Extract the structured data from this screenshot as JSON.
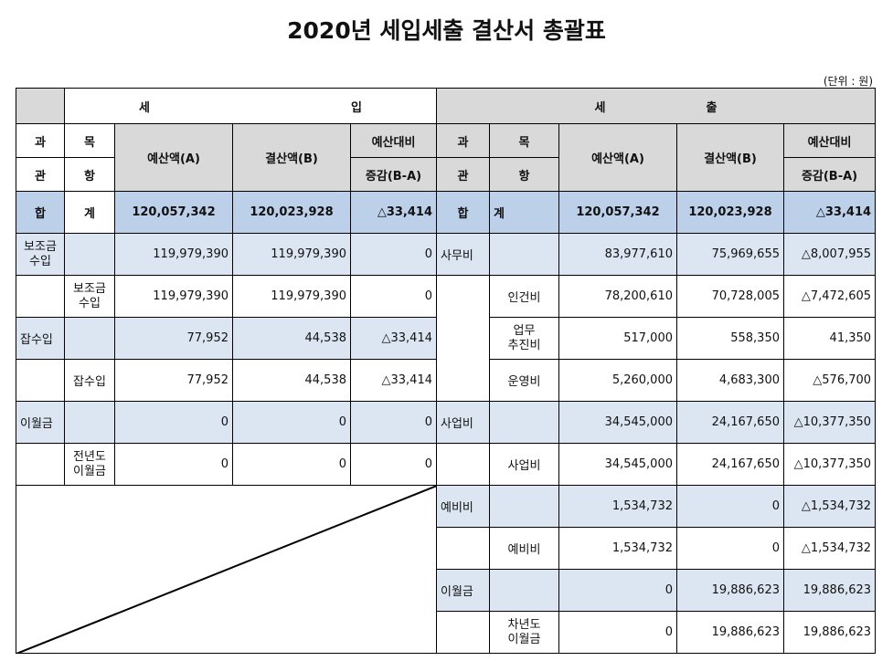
{
  "title": "2020년 세입세출 결산서 총괄표",
  "unit": "(단위 : 원)",
  "revenue": {
    "header_left": "세",
    "header_right": "입",
    "col_gwa": "과",
    "col_mok": "목",
    "col_gwan": "관",
    "col_hang": "항",
    "col_budget": "예산액(A)",
    "col_settle": "결산액(B)",
    "col_diff_top": "예산대비",
    "col_diff_bottom": "증감(B-A)",
    "total": {
      "gwan": "합",
      "hang": "계",
      "budget": "120,057,342",
      "settle": "120,023,928",
      "diff": "△33,414"
    },
    "rows": [
      {
        "gwan": "보조금\n수입",
        "hang": "",
        "budget": "119,979,390",
        "settle": "119,979,390",
        "diff": "0"
      },
      {
        "gwan": "",
        "hang": "보조금\n수입",
        "budget": "119,979,390",
        "settle": "119,979,390",
        "diff": "0"
      },
      {
        "gwan": "잡수입",
        "hang": "",
        "budget": "77,952",
        "settle": "44,538",
        "diff": "△33,414"
      },
      {
        "gwan": "",
        "hang": "잡수입",
        "budget": "77,952",
        "settle": "44,538",
        "diff": "△33,414"
      },
      {
        "gwan": "이월금",
        "hang": "",
        "budget": "0",
        "settle": "0",
        "diff": "0"
      },
      {
        "gwan": "",
        "hang": "전년도\n이월금",
        "budget": "0",
        "settle": "0",
        "diff": "0"
      }
    ]
  },
  "expenditure": {
    "header_left": "세",
    "header_right": "출",
    "col_gwa": "과",
    "col_mok": "목",
    "col_gwan": "관",
    "col_hang": "항",
    "col_budget": "예산액(A)",
    "col_settle": "결산액(B)",
    "col_diff_top": "예산대비",
    "col_diff_bottom": "증감(B-A)",
    "total": {
      "gwan": "합",
      "hang": "계",
      "budget": "120,057,342",
      "settle": "120,023,928",
      "diff": "△33,414"
    },
    "rows": [
      {
        "gwan": "사무비",
        "hang": "",
        "budget": "83,977,610",
        "settle": "75,969,655",
        "diff": "△8,007,955"
      },
      {
        "gwan": "",
        "hang": "인건비",
        "budget": "78,200,610",
        "settle": "70,728,005",
        "diff": "△7,472,605"
      },
      {
        "gwan": "",
        "hang": "업무\n추진비",
        "budget": "517,000",
        "settle": "558,350",
        "diff": "41,350"
      },
      {
        "gwan": "",
        "hang": "운영비",
        "budget": "5,260,000",
        "settle": "4,683,300",
        "diff": "△576,700"
      },
      {
        "gwan": "사업비",
        "hang": "",
        "budget": "34,545,000",
        "settle": "24,167,650",
        "diff": "△10,377,350"
      },
      {
        "gwan": "",
        "hang": "사업비",
        "budget": "34,545,000",
        "settle": "24,167,650",
        "diff": "△10,377,350"
      },
      {
        "gwan": "예비비",
        "hang": "",
        "budget": "1,534,732",
        "settle": "0",
        "diff": "△1,534,732"
      },
      {
        "gwan": "",
        "hang": "예비비",
        "budget": "1,534,732",
        "settle": "0",
        "diff": "△1,534,732"
      },
      {
        "gwan": "이월금",
        "hang": "",
        "budget": "0",
        "settle": "19,886,623",
        "diff": "19,886,623"
      },
      {
        "gwan": "",
        "hang": "차년도\n이월금",
        "budget": "0",
        "settle": "19,886,623",
        "diff": "19,886,623"
      }
    ]
  }
}
